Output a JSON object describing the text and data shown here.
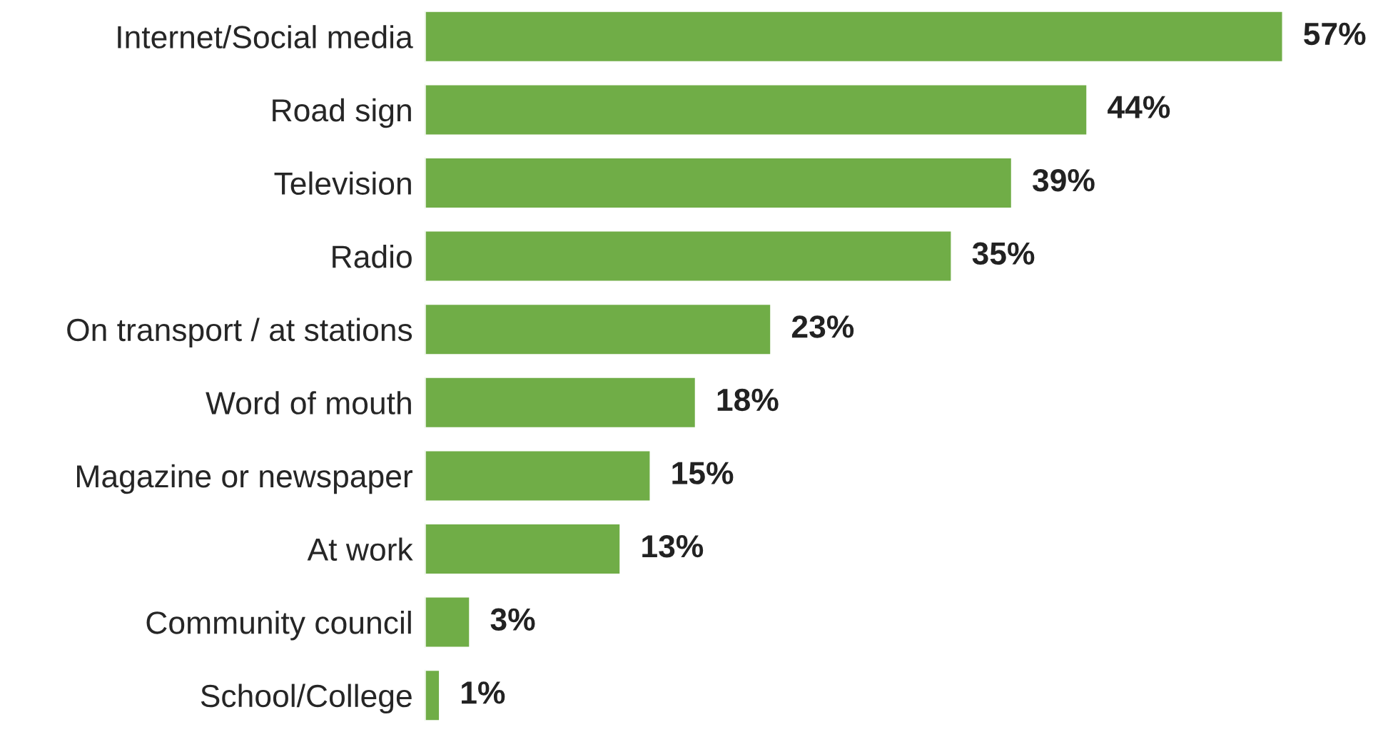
{
  "chart_data": {
    "type": "bar",
    "orientation": "horizontal",
    "categories": [
      "Internet/Social media",
      "Road sign",
      "Television",
      "Radio",
      "On transport / at stations",
      "Word of mouth",
      "Magazine or newspaper",
      "At work",
      "Community council",
      "School/College"
    ],
    "values": [
      57,
      44,
      39,
      35,
      23,
      18,
      15,
      13,
      3,
      1
    ],
    "value_labels": [
      "57%",
      "44%",
      "39%",
      "35%",
      "23%",
      "18%",
      "15%",
      "13%",
      "3%",
      "1%"
    ],
    "color": "#70ad47",
    "grid": false,
    "legend": false
  }
}
